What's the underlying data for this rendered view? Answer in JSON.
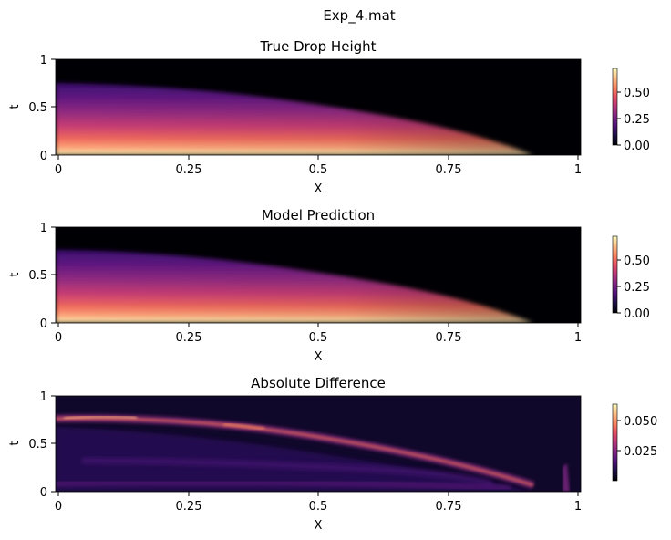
{
  "figure": {
    "suptitle": "Exp_4.mat"
  },
  "chart_data": [
    {
      "type": "heatmap",
      "title": "True Drop Height",
      "xlabel": "X",
      "ylabel": "t",
      "xlim": [
        0,
        1
      ],
      "ylim": [
        0,
        1
      ],
      "xticks": [
        "0",
        "0.25",
        "0.5",
        "0.75",
        "1"
      ],
      "yticks": [
        "0",
        "0.5",
        "1"
      ],
      "colormap": "magma",
      "colorbar": {
        "range": [
          0.0,
          0.72
        ],
        "ticks": [
          "0.00",
          "0.25",
          "0.50"
        ]
      },
      "profile": {
        "x": [
          0,
          0.2,
          0.4,
          0.6,
          0.8,
          0.9,
          0.92
        ],
        "t_edge": [
          0.72,
          0.68,
          0.56,
          0.38,
          0.15,
          0.02,
          0.0
        ],
        "peak_height": 0.72
      }
    },
    {
      "type": "heatmap",
      "title": "Model Prediction",
      "xlabel": "X",
      "ylabel": "t",
      "xlim": [
        0,
        1
      ],
      "ylim": [
        0,
        1
      ],
      "xticks": [
        "0",
        "0.25",
        "0.5",
        "0.75",
        "1"
      ],
      "yticks": [
        "0",
        "0.5",
        "1"
      ],
      "colormap": "magma",
      "colorbar": {
        "range": [
          0.0,
          0.72
        ],
        "ticks": [
          "0.00",
          "0.25",
          "0.50"
        ]
      },
      "profile": {
        "x": [
          0,
          0.2,
          0.4,
          0.6,
          0.8,
          0.9,
          0.92
        ],
        "t_edge": [
          0.73,
          0.69,
          0.57,
          0.39,
          0.16,
          0.03,
          0.0
        ],
        "peak_height": 0.72
      }
    },
    {
      "type": "heatmap",
      "title": "Absolute Difference",
      "xlabel": "X",
      "ylabel": "t",
      "xlim": [
        0,
        1
      ],
      "ylim": [
        0,
        1
      ],
      "xticks": [
        "0",
        "0.25",
        "0.5",
        "0.75",
        "1"
      ],
      "yticks": [
        "0",
        "0.5",
        "1"
      ],
      "colormap": "magma",
      "colorbar": {
        "range": [
          0.0,
          0.065
        ],
        "ticks": [
          "0.025",
          "0.050"
        ]
      },
      "profile": {
        "x": [
          0,
          0.2,
          0.4,
          0.6,
          0.8,
          0.9,
          0.92
        ],
        "t_edge": [
          0.76,
          0.71,
          0.59,
          0.41,
          0.17,
          0.03,
          0.0
        ],
        "peak_error": 0.062
      }
    }
  ]
}
